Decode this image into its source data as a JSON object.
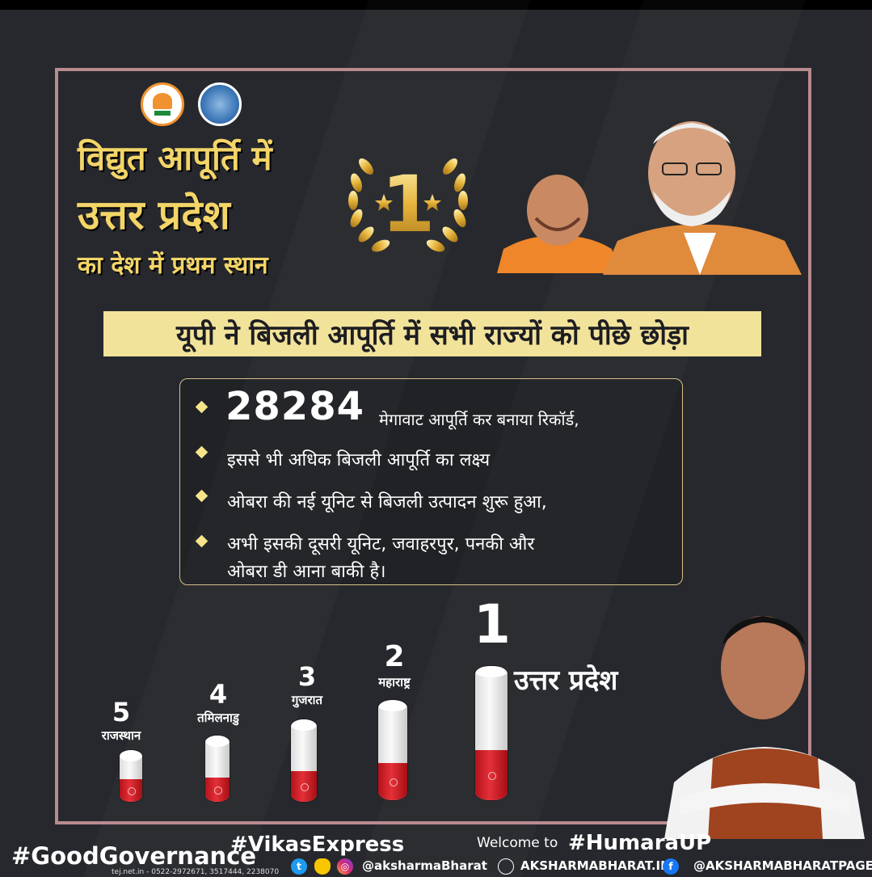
{
  "title": {
    "line1": "विद्युत आपूर्ति में",
    "line2": "उत्तर प्रदेश",
    "line3": "का देश में प्रथम स्थान"
  },
  "badge": {
    "rank": "1"
  },
  "banner": {
    "text": "यूपी ने बिजली आपूर्ति में सभी राज्यों को पीछे छोड़ा"
  },
  "points": {
    "figure": "28284",
    "items": [
      "मेगावाट आपूर्ति कर बनाया रिकॉर्ड,",
      "इससे भी अधिक बिजली आपूर्ति का लक्ष्य",
      "ओबरा की नई यूनिट से बिजली उत्पादन शुरू हुआ,",
      "अभी इसकी दूसरी यूनिट, जवाहरपुर, पनकी और",
      "ओबरा डी आना बाकी है।"
    ]
  },
  "ranking": [
    {
      "rank": "5",
      "state": "राजस्थान"
    },
    {
      "rank": "4",
      "state": "तमिलनाडु"
    },
    {
      "rank": "3",
      "state": "गुजरात"
    },
    {
      "rank": "2",
      "state": "महाराष्ट्र"
    },
    {
      "rank": "1",
      "state": "उत्तर प्रदेश"
    }
  ],
  "footer": {
    "hashtag_good": "#GoodGovernance",
    "hashtag_vikas": "#VikasExpress",
    "welcome": "Welcome to",
    "hashtag_humara": "#HumaraUP",
    "phone": "tej.net.in - 0522-2972671, 3517444, 2238070",
    "social_handle": "@aksharmaBharat",
    "website": "AKSHARMABHARAT.IN",
    "facebook": "@AKSHARMABHARATPAGE"
  },
  "icons": [
    "bjp-logo",
    "up-emblem",
    "laurel-badge-icon",
    "twitter-icon",
    "snapchat-icon",
    "instagram-icon",
    "globe-icon",
    "facebook-icon"
  ],
  "colors": {
    "background": "#26282d",
    "title_gold": "#f3d568",
    "banner_bg": "#f2e39b",
    "frame": "#b88b8f",
    "bar_red": "#e53038"
  }
}
